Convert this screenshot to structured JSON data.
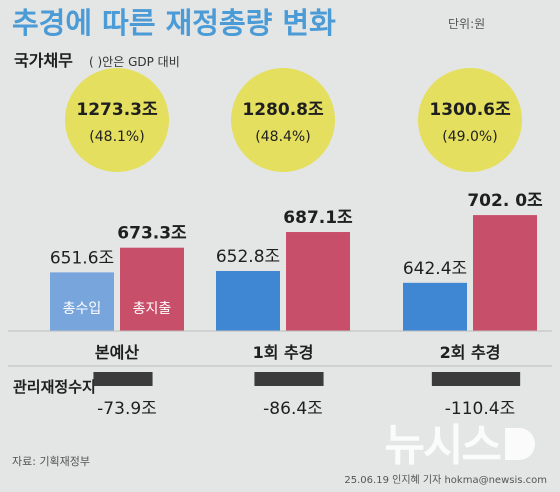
{
  "title": "추경에 따른 재정총량 변화",
  "unit_note": "단위:원",
  "subtitle": {
    "main": "국가채무",
    "paren": "( )안은 GDP 대비"
  },
  "colors": {
    "background": "#e4e5e5",
    "title": "#4b9bd6",
    "circle": "#e4df5e",
    "revenue_highlight": "#79a5dd",
    "revenue": "#3f86d3",
    "expenditure": "#c84f69",
    "deficit_bar": "#3b3b3b",
    "text": "#1f1f1f"
  },
  "chart_data": {
    "type": "bar",
    "title": "추경에 따른 재정총량 변화",
    "unit": "단위:원",
    "categories": [
      "본예산",
      "1회 추경",
      "2회 추경"
    ],
    "series": [
      {
        "name": "총수입",
        "values": [
          651.6,
          652.8,
          642.4
        ],
        "labels": [
          "651.6조",
          "652.8조",
          "642.4조"
        ]
      },
      {
        "name": "총지출",
        "values": [
          673.3,
          687.1,
          702.0
        ],
        "labels": [
          "673.3조",
          "687.1조",
          "702. 0조"
        ]
      }
    ],
    "national_debt": {
      "label": "국가채무",
      "note": "( )안은 GDP 대비",
      "values": [
        1273.3,
        1280.8,
        1300.6
      ],
      "value_labels": [
        "1273.3조",
        "1280.8조",
        "1300.6조"
      ],
      "gdp_ratio_labels": [
        "(48.1%)",
        "(48.4%)",
        "(49.0%)"
      ]
    },
    "fiscal_balance": {
      "label": "관리재정수지",
      "values": [
        -73.9,
        -86.4,
        -110.4
      ],
      "value_labels": [
        "-73.9조",
        "-86.4조",
        "-110.4조"
      ]
    },
    "bar_value_domain": [
      600,
      710
    ]
  },
  "footer": {
    "source": "자료: 기획재정부",
    "credit": "25.06.19 인지혜 기자 hokma@newsis.com",
    "logo": "뉴시스"
  }
}
